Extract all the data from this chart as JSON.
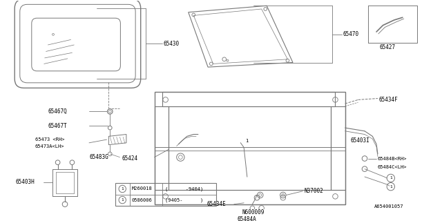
{
  "bg_color": "#ffffff",
  "line_color": "#777777",
  "text_color": "#000000",
  "diagram_id": "A654001057",
  "table_rows": [
    [
      "M260018",
      "(      -9404)"
    ],
    [
      "0586006",
      "(9405-      )"
    ]
  ]
}
